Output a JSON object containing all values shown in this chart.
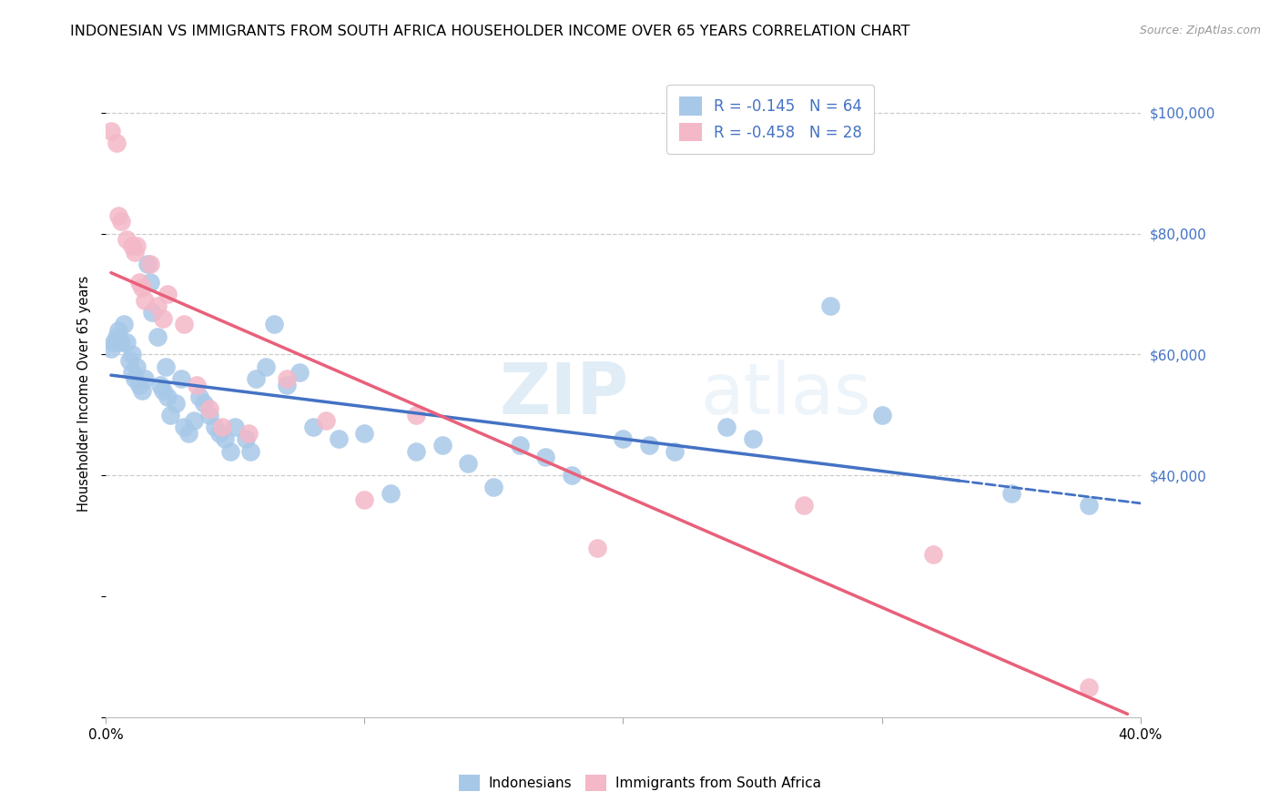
{
  "title": "INDONESIAN VS IMMIGRANTS FROM SOUTH AFRICA HOUSEHOLDER INCOME OVER 65 YEARS CORRELATION CHART",
  "source": "Source: ZipAtlas.com",
  "ylabel": "Householder Income Over 65 years",
  "legend_label1": "Indonesians",
  "legend_label2": "Immigrants from South Africa",
  "r1": "-0.145",
  "n1": "64",
  "r2": "-0.458",
  "n2": "28",
  "color_blue": "#a8c8e8",
  "color_pink": "#f4b8c8",
  "line_blue": "#4472c4",
  "line_pink": "#e8607a",
  "blue_x": [
    0.2,
    0.3,
    0.4,
    0.5,
    0.6,
    0.7,
    0.8,
    0.9,
    1.0,
    1.0,
    1.1,
    1.2,
    1.3,
    1.4,
    1.5,
    1.6,
    1.7,
    1.8,
    2.0,
    2.1,
    2.2,
    2.3,
    2.4,
    2.5,
    2.7,
    2.9,
    3.0,
    3.2,
    3.4,
    3.6,
    3.8,
    4.0,
    4.2,
    4.4,
    4.6,
    4.8,
    5.0,
    5.4,
    5.6,
    5.8,
    6.2,
    6.5,
    7.0,
    7.5,
    8.0,
    9.0,
    10.0,
    11.0,
    12.0,
    13.0,
    14.0,
    15.0,
    16.0,
    17.0,
    18.0,
    20.0,
    21.0,
    22.0,
    24.0,
    25.0,
    28.0,
    30.0,
    35.0,
    38.0
  ],
  "blue_y": [
    61000,
    62000,
    63000,
    64000,
    62000,
    65000,
    62000,
    59000,
    60000,
    57000,
    56000,
    58000,
    55000,
    54000,
    56000,
    75000,
    72000,
    67000,
    63000,
    55000,
    54000,
    58000,
    53000,
    50000,
    52000,
    56000,
    48000,
    47000,
    49000,
    53000,
    52000,
    50000,
    48000,
    47000,
    46000,
    44000,
    48000,
    46000,
    44000,
    56000,
    58000,
    65000,
    55000,
    57000,
    48000,
    46000,
    47000,
    37000,
    44000,
    45000,
    42000,
    38000,
    45000,
    43000,
    40000,
    46000,
    45000,
    44000,
    48000,
    46000,
    68000,
    50000,
    37000,
    35000
  ],
  "pink_x": [
    0.2,
    0.4,
    0.5,
    0.6,
    0.8,
    1.0,
    1.1,
    1.2,
    1.3,
    1.4,
    1.5,
    1.7,
    2.0,
    2.2,
    2.4,
    3.0,
    3.5,
    4.0,
    4.5,
    5.5,
    7.0,
    8.5,
    10.0,
    12.0,
    19.0,
    27.0,
    32.0,
    38.0
  ],
  "pink_y": [
    97000,
    95000,
    83000,
    82000,
    79000,
    78000,
    77000,
    78000,
    72000,
    71000,
    69000,
    75000,
    68000,
    66000,
    70000,
    65000,
    55000,
    51000,
    48000,
    47000,
    56000,
    49000,
    36000,
    50000,
    28000,
    35000,
    27000,
    5000
  ],
  "xlim": [
    0,
    40
  ],
  "ylim": [
    0,
    107000
  ],
  "xticks": [
    0,
    10,
    20,
    30,
    40
  ],
  "ytick_vals": [
    40000,
    60000,
    80000,
    100000
  ],
  "ytick_labels": [
    "$40,000",
    "$60,000",
    "$80,000",
    "$100,000"
  ],
  "blue_line_x0": 0,
  "blue_line_y0": 55000,
  "blue_line_x1": 40,
  "blue_line_y1": 44000,
  "blue_dash_start": 33,
  "pink_line_x0": 0,
  "pink_line_y0": 80000,
  "pink_line_x1": 39,
  "pink_line_y1": 2000
}
